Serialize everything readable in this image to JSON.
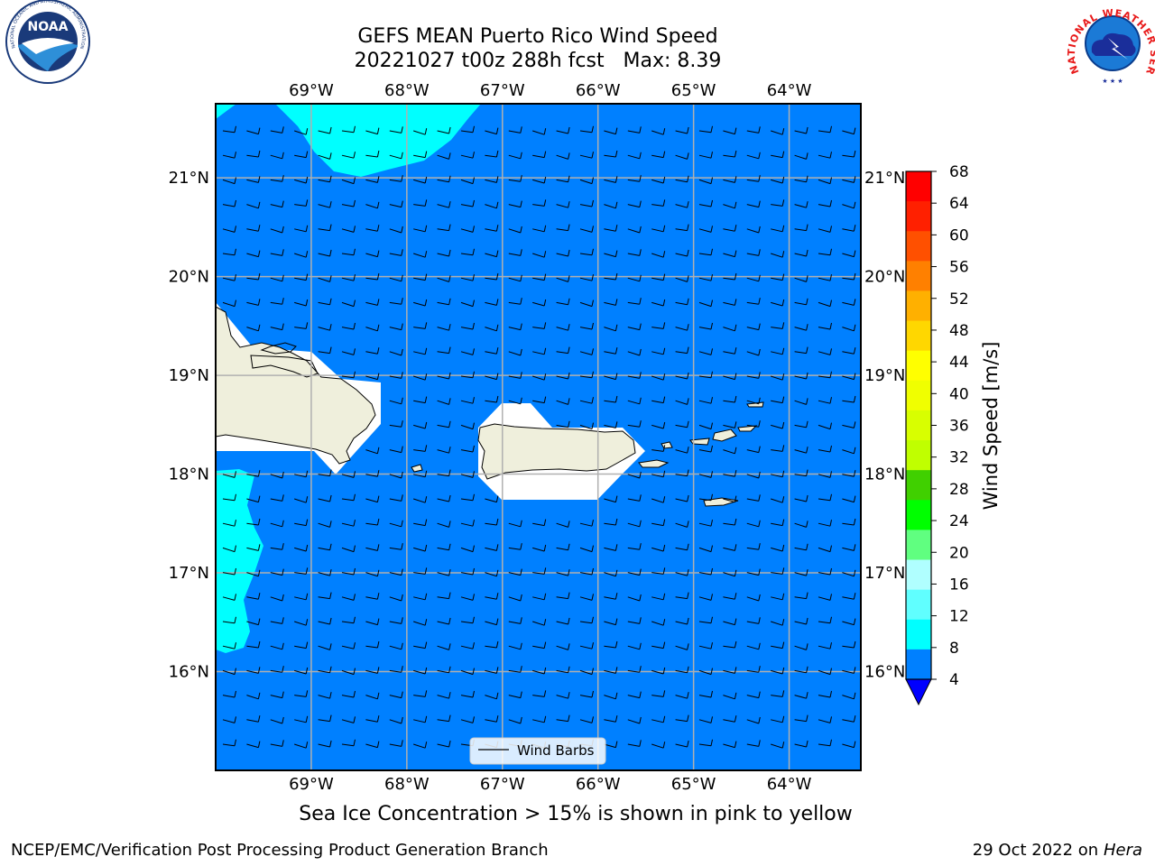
{
  "header": {
    "title_line1": "GEFS MEAN Puerto Rico Wind Speed",
    "title_line2": "20221027 t00z 288h fcst   Max: 8.39"
  },
  "logos": {
    "left": "noaa-logo",
    "left_text": "NOAA",
    "left_ring_text": "NATIONAL OCEANIC AND ATMOSPHERIC ADMINISTRATION · U.S. DEPARTMENT OF COMMERCE",
    "right": "nws-logo",
    "right_ring_text": "NATIONAL WEATHER SERVICE"
  },
  "map": {
    "lon_labels": [
      "69°W",
      "68°W",
      "67°W",
      "66°W",
      "65°W",
      "64°W"
    ],
    "lat_labels": [
      "21°N",
      "20°N",
      "19°N",
      "18°N",
      "17°N",
      "16°N"
    ],
    "lon_range": [
      -70,
      -63.25
    ],
    "lat_range": [
      15.0,
      21.75
    ],
    "ocean_color": "#0080ff",
    "low_wind_color": "#00ffff",
    "land_color": "#efefdc",
    "mask_color": "#ffffff",
    "grid": true,
    "legend_label": "Wind Barbs",
    "legend_placement": "bottom-center",
    "barb_direction": "easterly (from east-northeast)"
  },
  "colorbar": {
    "label": "Wind Speed [m/s]",
    "ticks": [
      "68",
      "64",
      "60",
      "56",
      "52",
      "48",
      "44",
      "40",
      "36",
      "32",
      "28",
      "24",
      "20",
      "16",
      "12",
      "8",
      "4"
    ],
    "colors": [
      "#ff0000",
      "#ff2000",
      "#ff5000",
      "#ff8000",
      "#ffb000",
      "#ffd700",
      "#ffff00",
      "#f0ff00",
      "#d8ff00",
      "#c0ff00",
      "#40d000",
      "#00ff00",
      "#60ff80",
      "#b0ffff",
      "#60ffff",
      "#00ffff",
      "#0080ff"
    ],
    "extend_color": "#0000ff"
  },
  "caption": "Sea Ice Concentration > 15% is shown in pink to yellow",
  "footer": {
    "left": "NCEP/EMC/Verification Post Processing Product Generation Branch",
    "right_date": "29 Oct 2022 on ",
    "right_host": "Hera"
  }
}
